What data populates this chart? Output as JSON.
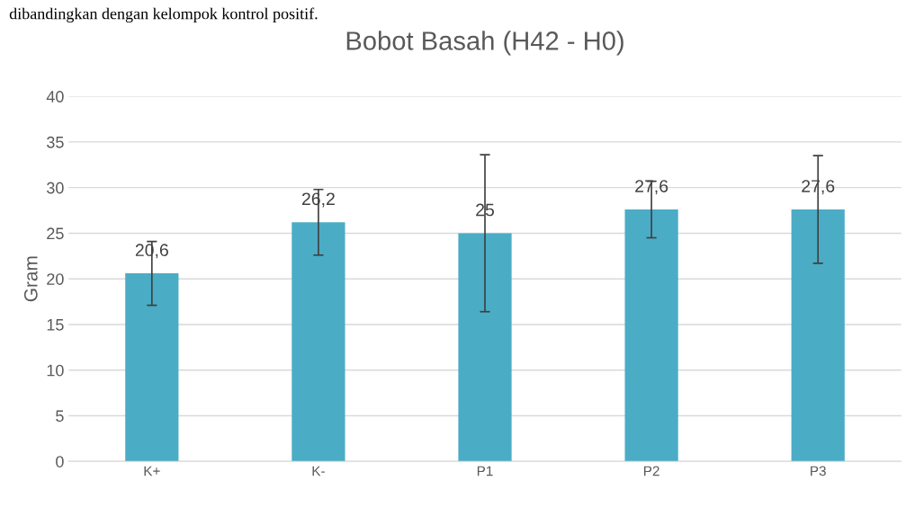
{
  "chart_data": {
    "type": "bar",
    "title": "Bobot Basah (H42 - H0)",
    "ylabel": "Gram",
    "annotations": [
      "dibandingkan dengan kelompok kontrol positif."
    ],
    "categories": [
      "K+",
      "K-",
      "P1",
      "P2",
      "P3"
    ],
    "values": [
      20.6,
      26.2,
      25,
      27.6,
      27.6
    ],
    "errors": [
      3.5,
      3.6,
      8.6,
      3.1,
      5.9
    ],
    "value_labels": [
      "20,6",
      "26,2",
      "25",
      "27,6",
      "27,6"
    ],
    "color": "#4bacc6",
    "ylim": [
      0,
      40
    ],
    "yticks": [
      0,
      5,
      10,
      15,
      20,
      25,
      30,
      35,
      40
    ],
    "grid": "y",
    "legend": false
  }
}
